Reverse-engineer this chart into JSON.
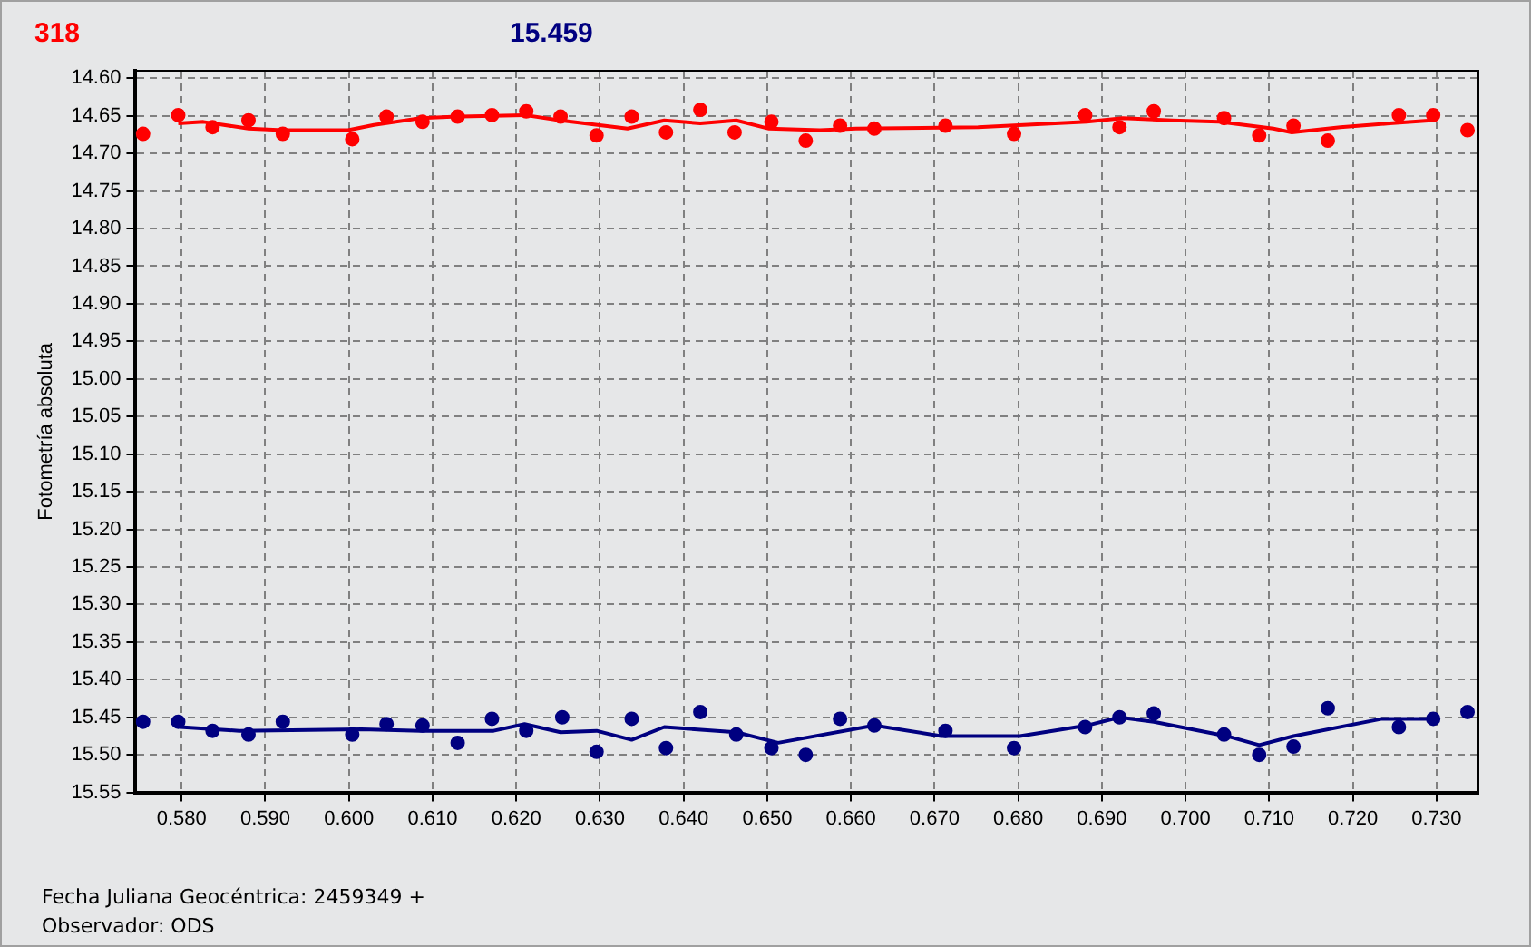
{
  "chart_data": {
    "type": "scatter",
    "title": "318",
    "subtitle": "15.459",
    "xlabel": "Fecha Juliana Geocéntrica: 2459349 +",
    "ylabel": "Fotometría absoluta",
    "annotations": [
      "Observador: ODS"
    ],
    "xlim": [
      0.5745,
      0.735
    ],
    "ylim": [
      15.55,
      14.59
    ],
    "xticks": [
      {
        "value": 0.58,
        "label": "0.580"
      },
      {
        "value": 0.59,
        "label": "0.590"
      },
      {
        "value": 0.6,
        "label": "0.600"
      },
      {
        "value": 0.61,
        "label": "0.610"
      },
      {
        "value": 0.62,
        "label": "0.620"
      },
      {
        "value": 0.63,
        "label": "0.630"
      },
      {
        "value": 0.64,
        "label": "0.640"
      },
      {
        "value": 0.65,
        "label": "0.650"
      },
      {
        "value": 0.66,
        "label": "0.660"
      },
      {
        "value": 0.67,
        "label": "0.670"
      },
      {
        "value": 0.68,
        "label": "0.680"
      },
      {
        "value": 0.69,
        "label": "0.690"
      },
      {
        "value": 0.7,
        "label": "0.700"
      },
      {
        "value": 0.71,
        "label": "0.710"
      },
      {
        "value": 0.72,
        "label": "0.720"
      },
      {
        "value": 0.73,
        "label": "0.730"
      }
    ],
    "yticks": [
      {
        "value": 14.6,
        "label": "14.60"
      },
      {
        "value": 14.65,
        "label": "14.65"
      },
      {
        "value": 14.7,
        "label": "14.70"
      },
      {
        "value": 14.75,
        "label": "14.75"
      },
      {
        "value": 14.8,
        "label": "14.80"
      },
      {
        "value": 14.85,
        "label": "14.85"
      },
      {
        "value": 14.9,
        "label": "14.90"
      },
      {
        "value": 14.95,
        "label": "14.95"
      },
      {
        "value": 15.0,
        "label": "15.00"
      },
      {
        "value": 15.05,
        "label": "15.05"
      },
      {
        "value": 15.1,
        "label": "15.10"
      },
      {
        "value": 15.15,
        "label": "15.15"
      },
      {
        "value": 15.2,
        "label": "15.20"
      },
      {
        "value": 15.25,
        "label": "15.25"
      },
      {
        "value": 15.3,
        "label": "15.30"
      },
      {
        "value": 15.35,
        "label": "15.35"
      },
      {
        "value": 15.4,
        "label": "15.40"
      },
      {
        "value": 15.45,
        "label": "15.45"
      },
      {
        "value": 15.5,
        "label": "15.50"
      },
      {
        "value": 15.55,
        "label": "15.55"
      }
    ],
    "grid": true,
    "legend": false,
    "series": [
      {
        "type": "scatter",
        "marker": "circle",
        "color": "#ff0000",
        "x": [
          0.5754,
          0.5796,
          0.5837,
          0.588,
          0.5921,
          0.6004,
          0.6045,
          0.6088,
          0.613,
          0.6171,
          0.6212,
          0.6253,
          0.6296,
          0.6338,
          0.6379,
          0.642,
          0.6461,
          0.6505,
          0.6546,
          0.6587,
          0.6628,
          0.6713,
          0.6795,
          0.688,
          0.6921,
          0.6962,
          0.7046,
          0.7088,
          0.7129,
          0.717,
          0.7255,
          0.7296,
          0.7337
        ],
        "values": [
          14.674,
          14.649,
          14.665,
          14.656,
          14.674,
          14.681,
          14.651,
          14.658,
          14.651,
          14.649,
          14.644,
          14.651,
          14.676,
          14.651,
          14.672,
          14.642,
          14.672,
          14.658,
          14.683,
          14.663,
          14.667,
          14.663,
          14.674,
          14.649,
          14.665,
          14.644,
          14.653,
          14.676,
          14.663,
          14.683,
          14.649,
          14.649,
          14.669
        ]
      },
      {
        "type": "line",
        "marker": "none",
        "color": "#ff0000",
        "x": [
          0.5796,
          0.5826,
          0.588,
          0.5921,
          0.5999,
          0.603,
          0.6086,
          0.613,
          0.621,
          0.6253,
          0.6333,
          0.6377,
          0.642,
          0.6463,
          0.6502,
          0.6563,
          0.6606,
          0.6752,
          0.6882,
          0.6925,
          0.6984,
          0.704,
          0.7105,
          0.7127,
          0.7185,
          0.7244,
          0.7294
        ],
        "values": [
          14.66,
          14.658,
          14.667,
          14.669,
          14.669,
          14.662,
          14.653,
          14.651,
          14.649,
          14.656,
          14.667,
          14.656,
          14.66,
          14.656,
          14.667,
          14.669,
          14.667,
          14.665,
          14.658,
          14.653,
          14.656,
          14.658,
          14.667,
          14.672,
          14.665,
          14.66,
          14.656
        ]
      },
      {
        "type": "scatter",
        "marker": "circle",
        "color": "#000080",
        "x": [
          0.5754,
          0.5796,
          0.5837,
          0.588,
          0.5921,
          0.6004,
          0.6045,
          0.6088,
          0.613,
          0.6171,
          0.6212,
          0.6255,
          0.6296,
          0.6338,
          0.6379,
          0.642,
          0.6463,
          0.6505,
          0.6546,
          0.6587,
          0.6628,
          0.6713,
          0.6795,
          0.688,
          0.6921,
          0.6962,
          0.7046,
          0.7088,
          0.7129,
          0.717,
          0.7255,
          0.7296,
          0.7337
        ],
        "values": [
          15.456,
          15.456,
          15.468,
          15.473,
          15.456,
          15.473,
          15.459,
          15.461,
          15.484,
          15.452,
          15.468,
          15.45,
          15.496,
          15.452,
          15.491,
          15.443,
          15.473,
          15.491,
          15.5,
          15.452,
          15.461,
          15.468,
          15.491,
          15.463,
          15.45,
          15.445,
          15.473,
          15.5,
          15.489,
          15.438,
          15.463,
          15.452,
          15.443
        ]
      },
      {
        "type": "line",
        "marker": "none",
        "color": "#000080",
        "x": [
          0.5798,
          0.5869,
          0.6015,
          0.6086,
          0.6173,
          0.621,
          0.6253,
          0.6296,
          0.6338,
          0.6377,
          0.6463,
          0.6513,
          0.6628,
          0.6708,
          0.6802,
          0.6882,
          0.6921,
          0.6962,
          0.7049,
          0.7088,
          0.7129,
          0.7235,
          0.7296
        ],
        "values": [
          15.463,
          15.468,
          15.466,
          15.468,
          15.468,
          15.459,
          15.47,
          15.468,
          15.48,
          15.463,
          15.47,
          15.484,
          15.461,
          15.475,
          15.475,
          15.461,
          15.45,
          15.456,
          15.475,
          15.487,
          15.475,
          15.452,
          15.452
        ]
      }
    ]
  }
}
